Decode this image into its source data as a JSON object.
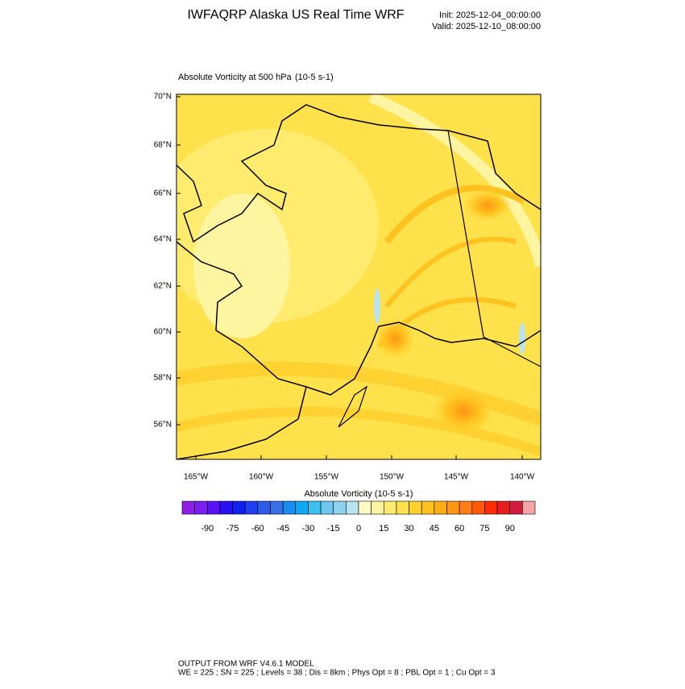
{
  "header": {
    "title": "IWFAQRP Alaska US Real Time WRF",
    "init": "Init: 2025-12-04_00:00:00",
    "valid": "Valid: 2025-12-10_08:00:00"
  },
  "plot": {
    "title": "Absolute Vorticity at 500 hPa",
    "units": "(10-5 s-1)"
  },
  "map": {
    "lat_labels": [
      "70°N",
      "68°N",
      "66°N",
      "64°N",
      "62°N",
      "60°N",
      "58°N",
      "56°N"
    ],
    "lon_labels": [
      "165°W",
      "160°W",
      "155°W",
      "150°W",
      "145°W",
      "140°W"
    ]
  },
  "colorbar": {
    "title": "Absolute Vorticity  (10-5 s-1)",
    "labels": [
      -90,
      -75,
      -60,
      -45,
      -30,
      -15,
      0,
      15,
      30,
      45,
      60,
      75,
      90
    ],
    "colors": [
      "#8c1ee6",
      "#7a1ef0",
      "#5a10f5",
      "#2a10f5",
      "#1020f0",
      "#1f3ff0",
      "#2f5ae8",
      "#3a6fe6",
      "#1b8cf0",
      "#10a8f5",
      "#3cc0f0",
      "#6cc6ee",
      "#8fd2f0",
      "#b7e4f0",
      "#fffac8",
      "#fff5a0",
      "#ffeb6e",
      "#ffe14b",
      "#ffd232",
      "#ffc21e",
      "#ffad14",
      "#ff9614",
      "#ff7d14",
      "#ff5a0a",
      "#ff2d00",
      "#e61e1e",
      "#d21e3c",
      "#f5a5a5"
    ]
  },
  "footer": {
    "line1": "OUTPUT FROM WRF V4.6.1 MODEL",
    "line2": "WE = 225 ; SN = 225 ; Levels = 38 ; Dis = 8km ; Phys Opt = 8 ; PBL Opt = 1 ; Cu Opt = 3"
  }
}
